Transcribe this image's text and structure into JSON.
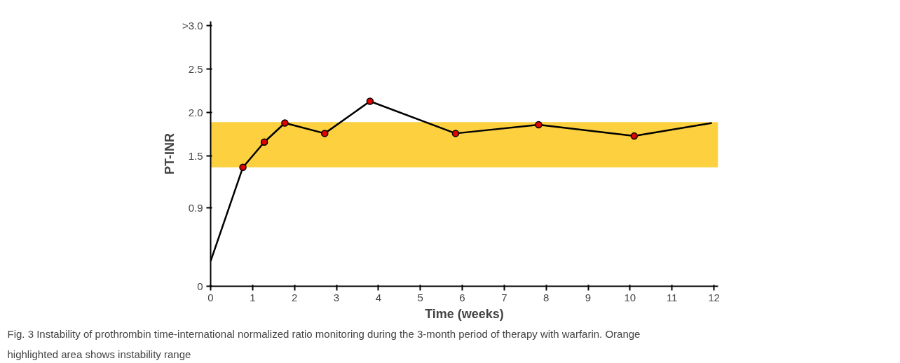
{
  "chart_data": {
    "type": "line",
    "xlabel": "Time (weeks)",
    "ylabel": "PT-INR",
    "xlim": [
      0,
      12.1
    ],
    "xticks": [
      0,
      1,
      2,
      3,
      4,
      5,
      6,
      7,
      8,
      9,
      10,
      11,
      12
    ],
    "ylim": [
      0,
      3.05
    ],
    "yticks": [
      0,
      0.9,
      1.5,
      {
        "value": 2.0,
        "label": "2.0"
      },
      2.5,
      {
        "value": 3.0,
        "label": ">3.0"
      }
    ],
    "grid": false,
    "series": [
      {
        "color": "#000000",
        "marker": "none",
        "x": [
          0,
          0.77,
          1.28,
          1.77,
          2.72,
          3.8,
          5.84,
          7.82,
          10.1,
          11.95
        ],
        "values": [
          0.29,
          1.37,
          1.66,
          1.88,
          1.76,
          2.13,
          1.76,
          1.86,
          1.73,
          1.88
        ]
      },
      {
        "type": "scatter",
        "color": "#e00000",
        "marker": "circle",
        "x": [
          0.77,
          1.28,
          1.77,
          2.72,
          3.8,
          5.84,
          7.82,
          10.1
        ],
        "values": [
          1.37,
          1.66,
          1.88,
          1.76,
          2.13,
          1.76,
          1.86,
          1.73
        ]
      }
    ],
    "bands": [
      {
        "axis": "y",
        "from": 1.37,
        "to": 1.89,
        "color": "#fcd03f"
      }
    ],
    "annotations": [
      "Fig. 3 Instability of prothrombin time-international normalized ratio monitoring during the 3-month period of therapy with warfarin. Orange highlighted area shows instability range"
    ]
  }
}
